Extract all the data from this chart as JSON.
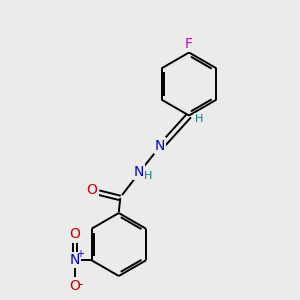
{
  "bg_color": "#ebebeb",
  "bond_color": "#000000",
  "atom_colors": {
    "F": "#cc00cc",
    "N": "#0000cc",
    "O": "#cc0000",
    "H": "#008080",
    "C": "#000000"
  },
  "font_size": 10,
  "small_font_size": 8,
  "line_width": 1.4,
  "dbo": 0.08
}
